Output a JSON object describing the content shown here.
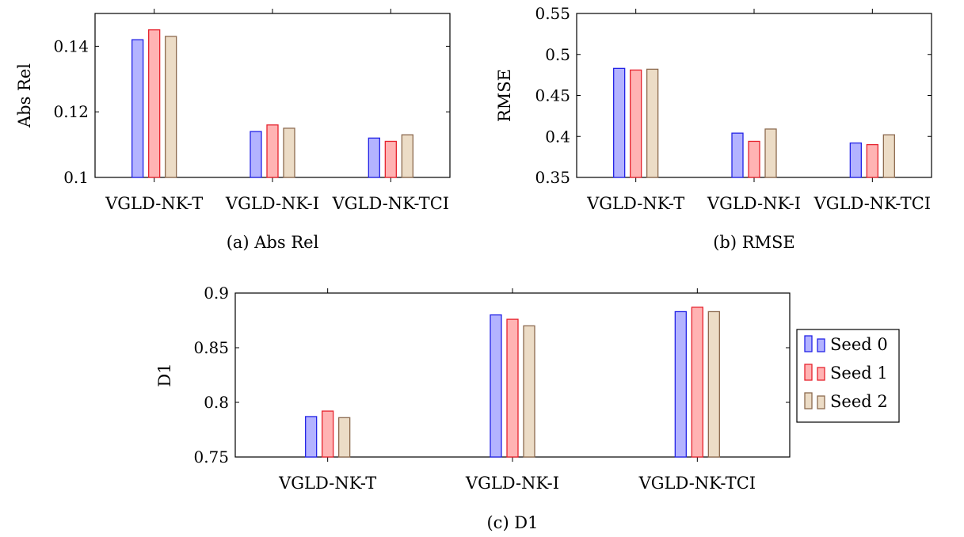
{
  "series_colors": {
    "Seed 0": {
      "fill": "#b3b3ff",
      "stroke": "#2323e6"
    },
    "Seed 1": {
      "fill": "#ffb3b3",
      "stroke": "#e6232e"
    },
    "Seed 2": {
      "fill": "#ecdcc6",
      "stroke": "#8c6a4f"
    }
  },
  "legend": [
    "Seed 0",
    "Seed 1",
    "Seed 2"
  ],
  "chart_data": [
    {
      "type": "bar",
      "title": "",
      "caption": "(a) Abs Rel",
      "ylabel": "Abs Rel",
      "xlabel": "",
      "ylim": [
        0.1,
        0.15
      ],
      "yticks": [
        0.1,
        0.12,
        0.14
      ],
      "ytick_labels": [
        "0.1",
        "0.12",
        "0.14"
      ],
      "categories": [
        "VGLD-NK-T",
        "VGLD-NK-I",
        "VGLD-NK-TCI"
      ],
      "series": [
        {
          "name": "Seed 0",
          "values": [
            0.142,
            0.114,
            0.112
          ]
        },
        {
          "name": "Seed 1",
          "values": [
            0.145,
            0.116,
            0.111
          ]
        },
        {
          "name": "Seed 2",
          "values": [
            0.143,
            0.115,
            0.113
          ]
        }
      ]
    },
    {
      "type": "bar",
      "title": "",
      "caption": "(b) RMSE",
      "ylabel": "RMSE",
      "xlabel": "",
      "ylim": [
        0.35,
        0.55
      ],
      "yticks": [
        0.35,
        0.4,
        0.45,
        0.5,
        0.55
      ],
      "ytick_labels": [
        "0.35",
        "0.4",
        "0.45",
        "0.5",
        "0.55"
      ],
      "categories": [
        "VGLD-NK-T",
        "VGLD-NK-I",
        "VGLD-NK-TCI"
      ],
      "series": [
        {
          "name": "Seed 0",
          "values": [
            0.483,
            0.404,
            0.392
          ]
        },
        {
          "name": "Seed 1",
          "values": [
            0.481,
            0.394,
            0.39
          ]
        },
        {
          "name": "Seed 2",
          "values": [
            0.482,
            0.409,
            0.402
          ]
        }
      ]
    },
    {
      "type": "bar",
      "title": "",
      "caption": "(c) D1",
      "ylabel": "D1",
      "xlabel": "",
      "ylim": [
        0.75,
        0.9
      ],
      "yticks": [
        0.75,
        0.8,
        0.85,
        0.9
      ],
      "ytick_labels": [
        "0.75",
        "0.8",
        "0.85",
        "0.9"
      ],
      "categories": [
        "VGLD-NK-T",
        "VGLD-NK-I",
        "VGLD-NK-TCI"
      ],
      "legend_position": "right",
      "series": [
        {
          "name": "Seed 0",
          "values": [
            0.787,
            0.88,
            0.883
          ]
        },
        {
          "name": "Seed 1",
          "values": [
            0.792,
            0.876,
            0.887
          ]
        },
        {
          "name": "Seed 2",
          "values": [
            0.786,
            0.87,
            0.883
          ]
        }
      ]
    }
  ]
}
